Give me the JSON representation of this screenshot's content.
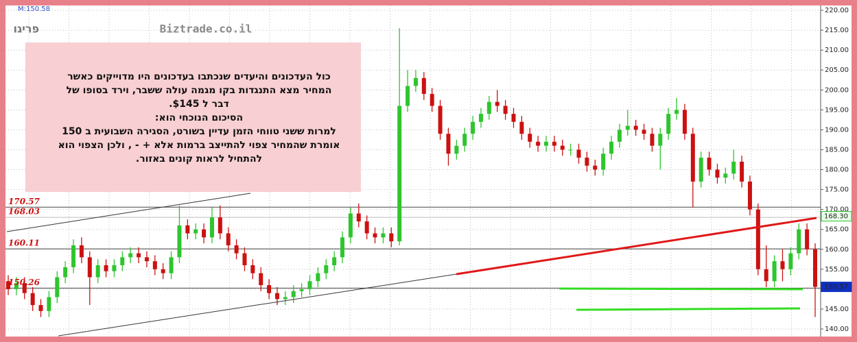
{
  "chart_data": {
    "type": "candlestick",
    "title": "פריגו",
    "watermark": "Biztrade.co.il",
    "info": "M:150.58",
    "up_color": "#2ec52e",
    "down_color": "#cc1111",
    "open": [
      152,
      150,
      151.5,
      149,
      146,
      144.5,
      148,
      153,
      155.5,
      161,
      158,
      153,
      156,
      154.5,
      156,
      158,
      159,
      158,
      157,
      155,
      154,
      158,
      166,
      164,
      165,
      163,
      168,
      164,
      161,
      159,
      156,
      154,
      151,
      149,
      147.5,
      148,
      149.5,
      150,
      152,
      154,
      156,
      158,
      163,
      169,
      167,
      164,
      163,
      164,
      162,
      196,
      201,
      203,
      199,
      196,
      189,
      184,
      186,
      189,
      192,
      194,
      197,
      196,
      194,
      192,
      189,
      187,
      186,
      187,
      186,
      185,
      185,
      183,
      181,
      180,
      184,
      187,
      190,
      191,
      190,
      189,
      186,
      189,
      194,
      195,
      189,
      177,
      183,
      180,
      178,
      179,
      182,
      177,
      170,
      155,
      152,
      157,
      155,
      159,
      165,
      160
    ],
    "high": [
      153.5,
      153,
      153,
      150.5,
      147.5,
      149.5,
      154.5,
      157,
      162.5,
      163,
      159.5,
      157.5,
      157.5,
      157.5,
      159.5,
      160.5,
      160.5,
      159.5,
      158.5,
      156.5,
      159.5,
      171,
      167.5,
      166.5,
      166.5,
      170.5,
      171,
      165.5,
      162.5,
      160.5,
      157.5,
      155.5,
      152.5,
      150.5,
      149.5,
      151,
      151.5,
      153.5,
      155.5,
      157.5,
      159.5,
      164.5,
      170.5,
      171.5,
      168.5,
      165.5,
      165.5,
      165.5,
      215.5,
      205,
      205,
      204.5,
      200.5,
      197.5,
      190.5,
      187.5,
      190.5,
      193.5,
      195.5,
      198.5,
      200,
      197.5,
      195.5,
      193.5,
      190.5,
      188.5,
      188.5,
      188.5,
      187.5,
      186.5,
      186.5,
      184.5,
      182.5,
      185.5,
      188.5,
      191.5,
      195,
      192.5,
      191.5,
      190.5,
      190.5,
      195.5,
      198,
      196.5,
      190.5,
      184.5,
      184.5,
      181.5,
      180.5,
      185,
      183.5,
      178.5,
      171.5,
      161,
      158.5,
      160,
      160.5,
      166.5,
      166.5,
      161.5
    ],
    "low": [
      148.5,
      148.5,
      147.5,
      144.5,
      143,
      143,
      146.5,
      151.5,
      154,
      156.5,
      146,
      151.5,
      153,
      153,
      154.5,
      156.5,
      156.5,
      155.5,
      153.5,
      152.5,
      152.5,
      156.5,
      162.5,
      162.5,
      161.5,
      161.5,
      162.5,
      159.5,
      157.5,
      154.5,
      152.5,
      149.5,
      147.5,
      146,
      146,
      146.5,
      148,
      148.5,
      150.5,
      152.5,
      154.5,
      156.5,
      161.5,
      165.5,
      162.5,
      161.5,
      161.5,
      160.5,
      161,
      194.5,
      199.5,
      197.5,
      194.5,
      187.5,
      181,
      182.5,
      184.5,
      187.5,
      190.5,
      192.5,
      194.5,
      192.5,
      190.5,
      187.5,
      185.5,
      184.5,
      184.5,
      184.5,
      183.5,
      183.5,
      181.5,
      179.5,
      178.5,
      178.5,
      182.5,
      185.5,
      188.5,
      188.5,
      187.5,
      184.5,
      180,
      187.5,
      192.5,
      187.5,
      170.5,
      175.5,
      178.5,
      176.5,
      176.5,
      177.5,
      175.5,
      168.5,
      153.5,
      150.5,
      150.5,
      152,
      153.5,
      157.5,
      158.5,
      143
    ],
    "close": [
      150,
      151.5,
      149,
      146,
      144.5,
      148,
      153,
      155.5,
      161,
      158,
      153,
      156,
      154.5,
      156,
      158,
      159,
      158,
      157,
      155,
      154,
      158,
      166,
      164,
      165,
      163,
      168,
      164,
      161,
      159,
      156,
      154,
      151,
      149,
      147.5,
      148,
      149.5,
      150,
      152,
      154,
      156,
      158,
      163,
      169,
      167,
      164,
      163,
      164,
      162,
      196,
      201,
      203,
      199,
      196,
      189,
      184,
      186,
      189,
      192,
      194,
      197,
      196,
      194,
      192,
      189,
      187,
      186,
      187,
      186,
      185,
      185,
      183,
      181,
      180,
      184,
      187,
      190,
      191,
      190,
      189,
      186,
      189,
      194,
      195,
      189,
      177,
      183,
      180,
      178,
      179,
      182,
      177,
      170,
      155,
      152,
      157,
      155,
      159,
      165,
      160,
      150.57
    ],
    "ylim": [
      140,
      220
    ],
    "yticks": [
      {
        "value": 140,
        "label": "140.00"
      },
      {
        "value": 145,
        "label": "145.00"
      },
      {
        "value": 150,
        "label": "150.00"
      },
      {
        "value": 155,
        "label": "155.00"
      },
      {
        "value": 160,
        "label": "160.00"
      },
      {
        "value": 165,
        "label": "165.00"
      },
      {
        "value": 170,
        "label": "170.00"
      },
      {
        "value": 175,
        "label": "175.00"
      },
      {
        "value": 180,
        "label": "180.00"
      },
      {
        "value": 185,
        "label": "185.00"
      },
      {
        "value": 190,
        "label": "190.00"
      },
      {
        "value": 195,
        "label": "195.00"
      },
      {
        "value": 200,
        "label": "200.00"
      },
      {
        "value": 205,
        "label": "205.00"
      },
      {
        "value": 210,
        "label": "210.00"
      },
      {
        "value": 215,
        "label": "215.00"
      },
      {
        "value": 220,
        "label": "220.00"
      }
    ],
    "grid": true,
    "levels": [
      170.57,
      168.03,
      160.11,
      150.26
    ],
    "markers": [
      {
        "value": 168.3,
        "label": "168.30",
        "color": "#2ec52e"
      },
      {
        "value": 150.57,
        "color": "#1030c0"
      }
    ],
    "annotation": [
      "כול העדכונים והיעדים שנכתבו בעדכונים היו מדוייקים כאשר",
      "המחיר מצא התנגדות בקו מגמה עולה ששבר, וירד בסופו של",
      "דבר ל $145.",
      "הסיכום הנוכחי הוא:",
      "למרות ששני טווחי הזמן עדיין  בשורט, הסגירה השבועית ב 150",
      "אומרת  שהמחיר צפוי להתייצב ברמות אלא  + - , ולכן הצפוי הוא",
      "להתחיל לראות קונים  באזור."
    ]
  }
}
